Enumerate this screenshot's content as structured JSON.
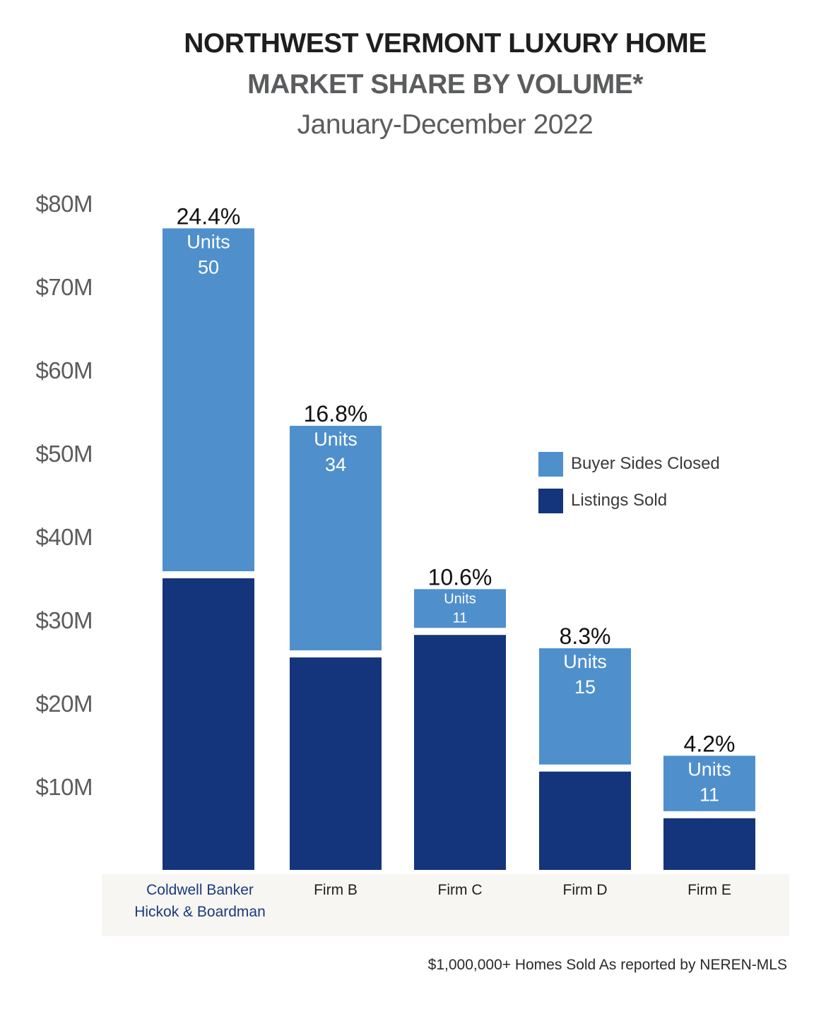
{
  "title": "NORTHWEST VERMONT LUXURY HOME",
  "subtitle": "MARKET SHARE BY VOLUME*",
  "period": "January-December 2022",
  "footnote": "$1,000,000+ Homes Sold As reported by NEREN-MLS",
  "colors": {
    "buyer_sides": "#4f90cc",
    "listings_sold": "#14357b",
    "category_band": "#f7f6f2"
  },
  "chart_data": {
    "type": "bar",
    "stacked": true,
    "categories": [
      "Coldwell Banker Hickok & Boardman",
      "Firm B",
      "Firm C",
      "Firm D",
      "Firm E"
    ],
    "category_lines": [
      [
        "Coldwell Banker",
        "Hickok & Boardman"
      ],
      [
        "Firm B"
      ],
      [
        "Firm C"
      ],
      [
        "Firm D"
      ],
      [
        "Firm E"
      ]
    ],
    "series": [
      {
        "name": "Listings Sold",
        "values": [
          35,
          25.5,
          28.2,
          11.8,
          6.2
        ]
      },
      {
        "name": "Buyer Sides Closed",
        "values": [
          42,
          27.8,
          5.5,
          14.8,
          7.5
        ]
      }
    ],
    "share_labels": [
      "24.4%",
      "16.8%",
      "10.6%",
      "8.3%",
      "4.2%"
    ],
    "units_label": "Units",
    "units": [
      "50",
      "34",
      "11",
      "15",
      "11"
    ],
    "ylim": [
      0,
      80
    ],
    "yticks": [
      10,
      20,
      30,
      40,
      50,
      60,
      70,
      80
    ],
    "ytick_labels": [
      "$10M",
      "$20M",
      "$30M",
      "$40M",
      "$50M",
      "$60M",
      "$70M",
      "$80M"
    ],
    "legend": [
      "Buyer Sides Closed",
      "Listings Sold"
    ],
    "legend_position": "right"
  }
}
